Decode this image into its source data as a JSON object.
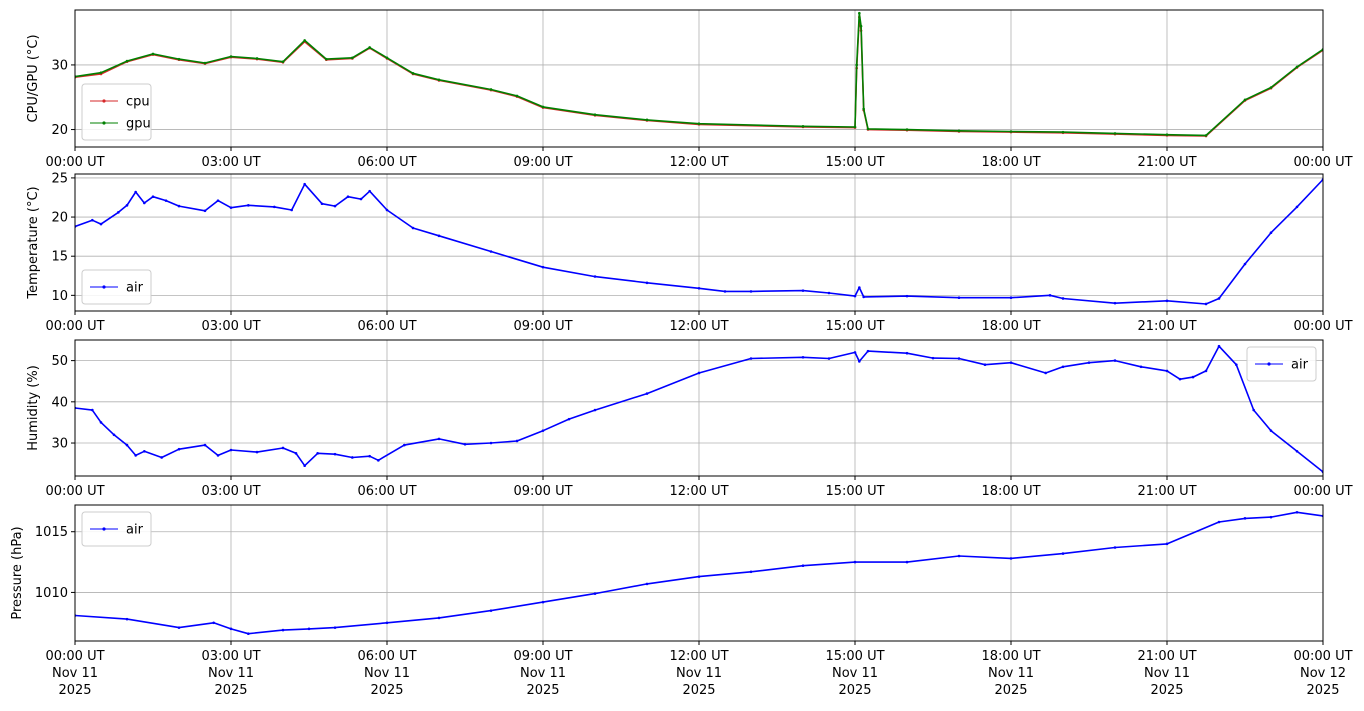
{
  "chart_data": [
    {
      "type": "line",
      "ylabel": "CPU/GPU (°C)",
      "ylim": [
        17.3,
        38.5
      ],
      "yticks": [
        20,
        30
      ],
      "xlim": [
        "2025-11-11T00:00",
        "2025-11-12T00:00"
      ],
      "grid": true,
      "legend_position": "lower-left",
      "series": [
        {
          "name": "cpu",
          "color": "#d62728",
          "marker": "dot",
          "points": [
            [
              "00:00",
              28.1
            ],
            [
              "00:30",
              28.6
            ],
            [
              "01:00",
              30.5
            ],
            [
              "01:30",
              31.6
            ],
            [
              "02:00",
              30.8
            ],
            [
              "02:30",
              30.2
            ],
            [
              "03:00",
              31.2
            ],
            [
              "03:30",
              30.9
            ],
            [
              "04:00",
              30.4
            ],
            [
              "04:25",
              33.6
            ],
            [
              "04:50",
              30.8
            ],
            [
              "05:20",
              31.0
            ],
            [
              "05:40",
              32.6
            ],
            [
              "06:00",
              31.0
            ],
            [
              "06:30",
              28.6
            ],
            [
              "07:00",
              27.6
            ],
            [
              "08:00",
              26.1
            ],
            [
              "08:30",
              25.1
            ],
            [
              "09:00",
              23.4
            ],
            [
              "10:00",
              22.2
            ],
            [
              "11:00",
              21.4
            ],
            [
              "12:00",
              20.8
            ],
            [
              "14:00",
              20.4
            ],
            [
              "15:00",
              20.3
            ],
            [
              "15:02",
              29.5
            ],
            [
              "15:05",
              37.4
            ],
            [
              "15:07",
              35.3
            ],
            [
              "15:10",
              23.0
            ],
            [
              "15:15",
              20.0
            ],
            [
              "16:00",
              19.9
            ],
            [
              "17:00",
              19.7
            ],
            [
              "18:00",
              19.6
            ],
            [
              "19:00",
              19.5
            ],
            [
              "20:00",
              19.3
            ],
            [
              "21:00",
              19.1
            ],
            [
              "21:45",
              19.0
            ],
            [
              "22:30",
              24.5
            ],
            [
              "23:00",
              26.4
            ],
            [
              "23:30",
              29.6
            ],
            [
              "24:00",
              32.3
            ]
          ]
        },
        {
          "name": "gpu",
          "color": "#008000",
          "marker": "dot",
          "points": [
            [
              "00:00",
              28.2
            ],
            [
              "00:30",
              28.8
            ],
            [
              "01:00",
              30.6
            ],
            [
              "01:30",
              31.7
            ],
            [
              "02:00",
              30.9
            ],
            [
              "02:30",
              30.3
            ],
            [
              "03:00",
              31.3
            ],
            [
              "03:30",
              31.0
            ],
            [
              "04:00",
              30.5
            ],
            [
              "04:25",
              33.8
            ],
            [
              "04:50",
              30.9
            ],
            [
              "05:20",
              31.1
            ],
            [
              "05:40",
              32.7
            ],
            [
              "06:00",
              31.1
            ],
            [
              "06:30",
              28.7
            ],
            [
              "07:00",
              27.7
            ],
            [
              "08:00",
              26.2
            ],
            [
              "08:30",
              25.2
            ],
            [
              "09:00",
              23.5
            ],
            [
              "10:00",
              22.3
            ],
            [
              "11:00",
              21.5
            ],
            [
              "12:00",
              20.9
            ],
            [
              "14:00",
              20.5
            ],
            [
              "15:00",
              20.4
            ],
            [
              "15:02",
              30.0
            ],
            [
              "15:05",
              38.0
            ],
            [
              "15:07",
              36.0
            ],
            [
              "15:10",
              23.2
            ],
            [
              "15:15",
              20.1
            ],
            [
              "16:00",
              20.0
            ],
            [
              "17:00",
              19.8
            ],
            [
              "18:00",
              19.7
            ],
            [
              "19:00",
              19.6
            ],
            [
              "20:00",
              19.4
            ],
            [
              "21:00",
              19.2
            ],
            [
              "21:45",
              19.1
            ],
            [
              "22:30",
              24.6
            ],
            [
              "23:00",
              26.5
            ],
            [
              "23:30",
              29.7
            ],
            [
              "24:00",
              32.4
            ]
          ]
        }
      ]
    },
    {
      "type": "line",
      "ylabel": "Temperature (°C)",
      "ylim": [
        8.0,
        25.5
      ],
      "yticks": [
        10,
        15,
        20,
        25
      ],
      "xlim": [
        "2025-11-11T00:00",
        "2025-11-12T00:00"
      ],
      "grid": true,
      "legend_position": "lower-left",
      "series": [
        {
          "name": "air",
          "color": "#0000ff",
          "marker": "dot",
          "points": [
            [
              "00:00",
              18.8
            ],
            [
              "00:20",
              19.6
            ],
            [
              "00:30",
              19.1
            ],
            [
              "00:50",
              20.6
            ],
            [
              "01:00",
              21.5
            ],
            [
              "01:10",
              23.2
            ],
            [
              "01:20",
              21.8
            ],
            [
              "01:30",
              22.6
            ],
            [
              "01:45",
              22.1
            ],
            [
              "02:00",
              21.4
            ],
            [
              "02:30",
              20.8
            ],
            [
              "02:45",
              22.1
            ],
            [
              "03:00",
              21.2
            ],
            [
              "03:20",
              21.5
            ],
            [
              "03:50",
              21.3
            ],
            [
              "04:10",
              20.9
            ],
            [
              "04:25",
              24.2
            ],
            [
              "04:45",
              21.7
            ],
            [
              "05:00",
              21.4
            ],
            [
              "05:15",
              22.6
            ],
            [
              "05:30",
              22.3
            ],
            [
              "05:40",
              23.3
            ],
            [
              "06:00",
              20.9
            ],
            [
              "06:30",
              18.6
            ],
            [
              "07:00",
              17.6
            ],
            [
              "08:00",
              15.6
            ],
            [
              "09:00",
              13.6
            ],
            [
              "10:00",
              12.4
            ],
            [
              "11:00",
              11.6
            ],
            [
              "12:00",
              10.9
            ],
            [
              "12:30",
              10.5
            ],
            [
              "13:00",
              10.5
            ],
            [
              "14:00",
              10.6
            ],
            [
              "14:30",
              10.3
            ],
            [
              "15:00",
              9.9
            ],
            [
              "15:05",
              11.0
            ],
            [
              "15:10",
              9.8
            ],
            [
              "16:00",
              9.9
            ],
            [
              "17:00",
              9.7
            ],
            [
              "18:00",
              9.7
            ],
            [
              "18:45",
              10.0
            ],
            [
              "19:00",
              9.6
            ],
            [
              "20:00",
              9.0
            ],
            [
              "21:00",
              9.3
            ],
            [
              "21:45",
              8.9
            ],
            [
              "22:00",
              9.6
            ],
            [
              "22:30",
              14.0
            ],
            [
              "23:00",
              18.0
            ],
            [
              "23:30",
              21.3
            ],
            [
              "24:00",
              24.8
            ]
          ]
        }
      ]
    },
    {
      "type": "line",
      "ylabel": "Humidity (%)",
      "ylim": [
        22.0,
        55.0
      ],
      "yticks": [
        30,
        40,
        50
      ],
      "xlim": [
        "2025-11-11T00:00",
        "2025-11-12T00:00"
      ],
      "grid": true,
      "legend_position": "top-right",
      "series": [
        {
          "name": "air",
          "color": "#0000ff",
          "marker": "dot",
          "points": [
            [
              "00:00",
              38.5
            ],
            [
              "00:20",
              38.0
            ],
            [
              "00:30",
              35.0
            ],
            [
              "00:45",
              32.0
            ],
            [
              "01:00",
              29.5
            ],
            [
              "01:10",
              27.0
            ],
            [
              "01:20",
              28.0
            ],
            [
              "01:40",
              26.5
            ],
            [
              "02:00",
              28.5
            ],
            [
              "02:30",
              29.5
            ],
            [
              "02:45",
              27.0
            ],
            [
              "03:00",
              28.3
            ],
            [
              "03:30",
              27.8
            ],
            [
              "04:00",
              28.8
            ],
            [
              "04:15",
              27.5
            ],
            [
              "04:25",
              24.5
            ],
            [
              "04:40",
              27.5
            ],
            [
              "05:00",
              27.3
            ],
            [
              "05:20",
              26.5
            ],
            [
              "05:40",
              26.8
            ],
            [
              "05:50",
              25.8
            ],
            [
              "06:20",
              29.5
            ],
            [
              "07:00",
              31.0
            ],
            [
              "07:30",
              29.7
            ],
            [
              "08:00",
              30.0
            ],
            [
              "08:30",
              30.5
            ],
            [
              "09:00",
              33.0
            ],
            [
              "09:30",
              35.8
            ],
            [
              "10:00",
              38.0
            ],
            [
              "11:00",
              42.0
            ],
            [
              "12:00",
              47.0
            ],
            [
              "13:00",
              50.5
            ],
            [
              "14:00",
              50.8
            ],
            [
              "14:30",
              50.5
            ],
            [
              "15:00",
              52.0
            ],
            [
              "15:05",
              49.8
            ],
            [
              "15:15",
              52.3
            ],
            [
              "16:00",
              51.8
            ],
            [
              "16:30",
              50.6
            ],
            [
              "17:00",
              50.5
            ],
            [
              "17:30",
              49.0
            ],
            [
              "18:00",
              49.5
            ],
            [
              "18:40",
              47.0
            ],
            [
              "19:00",
              48.5
            ],
            [
              "19:30",
              49.5
            ],
            [
              "20:00",
              50.0
            ],
            [
              "20:30",
              48.5
            ],
            [
              "21:00",
              47.5
            ],
            [
              "21:15",
              45.5
            ],
            [
              "21:30",
              46.0
            ],
            [
              "21:45",
              47.5
            ],
            [
              "22:00",
              53.5
            ],
            [
              "22:20",
              49.0
            ],
            [
              "22:40",
              38.0
            ],
            [
              "23:00",
              33.0
            ],
            [
              "23:30",
              28.0
            ],
            [
              "24:00",
              23.0
            ]
          ]
        }
      ]
    },
    {
      "type": "line",
      "ylabel": "Pressure (hPa)",
      "ylim": [
        1006.0,
        1017.2
      ],
      "yticks": [
        1010,
        1015
      ],
      "xlim": [
        "2025-11-11T00:00",
        "2025-11-12T00:00"
      ],
      "grid": true,
      "legend_position": "top-left",
      "series": [
        {
          "name": "air",
          "color": "#0000ff",
          "marker": "dot",
          "points": [
            [
              "00:00",
              1008.1
            ],
            [
              "01:00",
              1007.8
            ],
            [
              "02:00",
              1007.1
            ],
            [
              "02:40",
              1007.5
            ],
            [
              "03:00",
              1007.0
            ],
            [
              "03:20",
              1006.6
            ],
            [
              "04:00",
              1006.9
            ],
            [
              "04:30",
              1007.0
            ],
            [
              "05:00",
              1007.1
            ],
            [
              "06:00",
              1007.5
            ],
            [
              "07:00",
              1007.9
            ],
            [
              "08:00",
              1008.5
            ],
            [
              "09:00",
              1009.2
            ],
            [
              "10:00",
              1009.9
            ],
            [
              "11:00",
              1010.7
            ],
            [
              "12:00",
              1011.3
            ],
            [
              "13:00",
              1011.7
            ],
            [
              "14:00",
              1012.2
            ],
            [
              "15:00",
              1012.5
            ],
            [
              "16:00",
              1012.5
            ],
            [
              "17:00",
              1013.0
            ],
            [
              "18:00",
              1012.8
            ],
            [
              "19:00",
              1013.2
            ],
            [
              "20:00",
              1013.7
            ],
            [
              "21:00",
              1014.0
            ],
            [
              "22:00",
              1015.8
            ],
            [
              "22:30",
              1016.1
            ],
            [
              "23:00",
              1016.2
            ],
            [
              "23:30",
              1016.6
            ],
            [
              "24:00",
              1016.3
            ]
          ]
        }
      ]
    }
  ],
  "x_axis": {
    "ticks": [
      "00:00 UT",
      "03:00 UT",
      "06:00 UT",
      "09:00 UT",
      "12:00 UT",
      "15:00 UT",
      "18:00 UT",
      "21:00 UT",
      "00:00 UT"
    ],
    "bottom_dates": [
      [
        "Nov 11",
        "2025"
      ],
      [
        "Nov 11",
        "2025"
      ],
      [
        "Nov 11",
        "2025"
      ],
      [
        "Nov 11",
        "2025"
      ],
      [
        "Nov 11",
        "2025"
      ],
      [
        "Nov 11",
        "2025"
      ],
      [
        "Nov 11",
        "2025"
      ],
      [
        "Nov 11",
        "2025"
      ],
      [
        "Nov 12",
        "2025"
      ]
    ]
  },
  "colors": {
    "grid": "#b0b0b0",
    "axes": "#000000",
    "legend_border": "#cccccc"
  }
}
